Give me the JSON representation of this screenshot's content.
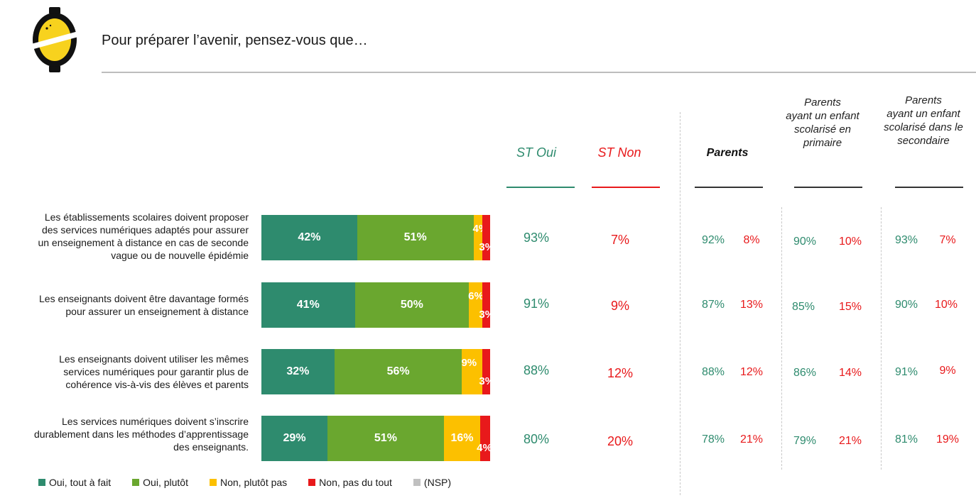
{
  "title": "Pour préparer l’avenir, pensez-vous que…",
  "colors": {
    "oui_tout_a_fait": "#2e8b6e",
    "oui_plutot": "#6aa72f",
    "non_plutot_pas": "#fcc000",
    "non_pas_du_tout": "#e8191b",
    "nsp": "#c0c0c0"
  },
  "headers": {
    "st_oui": "ST Oui",
    "st_non": "ST Non",
    "parents": "Parents",
    "primaire": [
      "Parents",
      "ayant un enfant",
      "scolarisé en",
      "primaire"
    ],
    "secondaire": [
      "Parents",
      "ayant un enfant",
      "scolarisé dans le",
      "secondaire"
    ]
  },
  "rows": [
    {
      "label": [
        "Les établissements scolaires doivent proposer",
        "des services numériques adaptés pour assurer",
        "un enseignement à distance en cas de seconde",
        "vague ou de nouvelle épidémie"
      ],
      "st_oui": "93%",
      "st_non": "7%",
      "parents_oui": "92%",
      "parents_non": "8%",
      "primaire_oui": "90%",
      "primaire_non": "10%",
      "secondaire_oui": "93%",
      "secondaire_non": "7%"
    },
    {
      "label": [
        "Les enseignants doivent être davantage formés",
        "pour assurer un enseignement à distance"
      ],
      "st_oui": "91%",
      "st_non": "9%",
      "parents_oui": "87%",
      "parents_non": "13%",
      "primaire_oui": "85%",
      "primaire_non": "15%",
      "secondaire_oui": "90%",
      "secondaire_non": "10%"
    },
    {
      "label": [
        "Les enseignants doivent utiliser les mêmes",
        "services numériques pour garantir plus de",
        "cohérence vis-à-vis des élèves et parents"
      ],
      "st_oui": "88%",
      "st_non": "12%",
      "parents_oui": "88%",
      "parents_non": "12%",
      "primaire_oui": "86%",
      "primaire_non": "14%",
      "secondaire_oui": "91%",
      "secondaire_non": "9%"
    },
    {
      "label": [
        "Les services numériques doivent s’inscrire",
        "durablement dans les méthodes d’apprentissage",
        "des enseignants."
      ],
      "st_oui": "80%",
      "st_non": "20%",
      "parents_oui": "78%",
      "parents_non": "21%",
      "primaire_oui": "79%",
      "primaire_non": "21%",
      "secondaire_oui": "81%",
      "secondaire_non": "19%"
    }
  ],
  "chart_data": {
    "type": "bar",
    "orientation": "horizontal",
    "stacked": true,
    "categories": [
      "Les établissements scolaires doivent proposer des services numériques adaptés pour assurer un enseignement à distance en cas de seconde vague ou de nouvelle épidémie",
      "Les enseignants doivent être davantage formés pour assurer un enseignement à distance",
      "Les enseignants doivent utiliser les mêmes services numériques pour garantir plus de cohérence vis-à-vis des élèves et parents",
      "Les services numériques doivent s’inscrire durablement dans les méthodes d’apprentissage des enseignants."
    ],
    "series": [
      {
        "name": "Oui, tout à fait",
        "values": [
          42,
          41,
          32,
          29
        ],
        "labels": [
          "42%",
          "41%",
          "32%",
          "29%"
        ]
      },
      {
        "name": "Oui, plutôt",
        "values": [
          51,
          50,
          56,
          51
        ],
        "labels": [
          "51%",
          "50%",
          "56%",
          "51%"
        ]
      },
      {
        "name": "Non, plutôt pas",
        "values": [
          4,
          6,
          9,
          16
        ],
        "labels": [
          "4%",
          "6%",
          "9%",
          "16%"
        ]
      },
      {
        "name": "Non, pas du tout",
        "values": [
          3,
          3,
          3,
          4
        ],
        "labels": [
          "3%",
          "3%",
          "3%",
          "4%"
        ]
      },
      {
        "name": "(NSP)",
        "values": [
          0,
          0,
          0,
          0
        ],
        "labels": [
          "",
          "",
          "",
          ""
        ]
      }
    ],
    "xlim": [
      0,
      100
    ],
    "legend": "bottom"
  }
}
